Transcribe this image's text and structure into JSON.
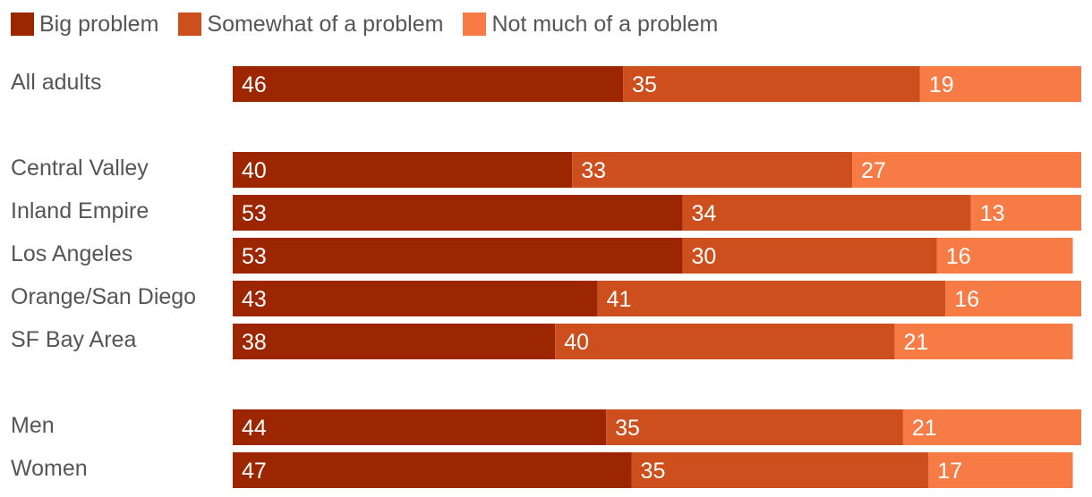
{
  "colors": {
    "big": "#9c2600",
    "somewhat": "#cd4f1d",
    "notmuch": "#f77b45"
  },
  "legend": [
    {
      "label": "Big problem",
      "color": "#9c2600"
    },
    {
      "label": "Somewhat of a problem",
      "color": "#cd4f1d"
    },
    {
      "label": "Not much of a problem",
      "color": "#f77b45"
    }
  ],
  "chart_data": {
    "type": "bar",
    "orientation": "horizontal",
    "stacked": true,
    "title": "",
    "xlabel": "",
    "ylabel": "",
    "xlim": [
      0,
      100
    ],
    "legend_position": "top-left",
    "grid": false,
    "categories": [
      "All adults",
      "Central Valley",
      "Inland Empire",
      "Los Angeles",
      "Orange/San Diego",
      "SF Bay Area",
      "Men",
      "Women"
    ],
    "groups": [
      [
        0
      ],
      [
        1,
        2,
        3,
        4,
        5
      ],
      [
        6,
        7
      ]
    ],
    "series": [
      {
        "name": "Big problem",
        "values": [
          46,
          40,
          53,
          53,
          43,
          38,
          44,
          47
        ]
      },
      {
        "name": "Somewhat of a problem",
        "values": [
          35,
          33,
          34,
          30,
          41,
          40,
          35,
          35
        ]
      },
      {
        "name": "Not much of a problem",
        "values": [
          19,
          27,
          13,
          16,
          16,
          21,
          21,
          17
        ]
      }
    ]
  }
}
